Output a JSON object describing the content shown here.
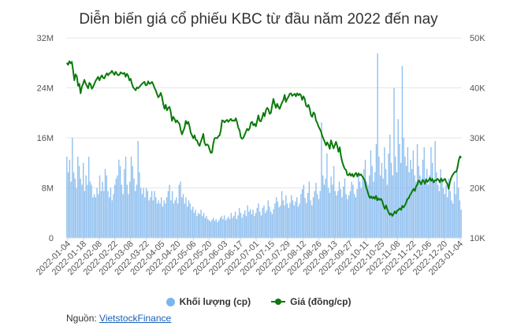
{
  "chart_data": {
    "type": "bar+line",
    "title": "Diễn biến giá cổ phiếu KBC từ đầu năm 2022 đến nay",
    "x_ticks": [
      "2022-01-04",
      "2022-01-18",
      "2022-02-08",
      "2022-02-22",
      "2022-03-08",
      "2022-03-22",
      "2022-04-05",
      "2022-04-20",
      "2022-05-06",
      "2022-05-20",
      "2022-06-03",
      "2022-06-17",
      "2022-07-01",
      "2022-07-15",
      "2022-07-29",
      "2022-08-12",
      "2022-08-26",
      "2022-09-13",
      "2022-09-27",
      "2022-10-11",
      "2022-10-25",
      "2022-11-08",
      "2022-11-22",
      "2022-12-06",
      "2022-12-20",
      "2023-01-04"
    ],
    "y_left": {
      "ticks": [
        "0",
        "8M",
        "16M",
        "24M",
        "32M"
      ],
      "min": 0,
      "max": 32000000
    },
    "y_right": {
      "ticks": [
        "10K",
        "20K",
        "30K",
        "40K",
        "50K"
      ],
      "min": 10000,
      "max": 50000
    },
    "series": [
      {
        "name": "Khối lượng (cp)",
        "type": "bar",
        "axis": "left",
        "color": "#7cb5ec",
        "values": [
          13000000,
          10500000,
          12500000,
          9000000,
          16000000,
          10500000,
          9500000,
          8000000,
          13000000,
          11500000,
          9500000,
          8500000,
          12000000,
          7500000,
          10000000,
          8500000,
          13000000,
          9000000,
          8500000,
          6500000,
          7000000,
          6500000,
          8000000,
          7000000,
          10000000,
          7500000,
          9000000,
          7500000,
          11000000,
          10000000,
          7500000,
          6500000,
          8000000,
          6000000,
          7000000,
          8500000,
          9500000,
          10000000,
          12500000,
          11500000,
          8500000,
          7000000,
          11000000,
          13000000,
          8500000,
          7000000,
          9000000,
          13000000,
          11500000,
          9500000,
          7500000,
          8500000,
          15500000,
          10500000,
          8000000,
          7000000,
          8000000,
          6500000,
          8000000,
          7500000,
          6000000,
          6500000,
          7500000,
          6000000,
          7500000,
          6500000,
          5500000,
          6000000,
          5500000,
          6500000,
          5000000,
          6000000,
          5500000,
          6500000,
          7500000,
          8500000,
          6000000,
          7500000,
          5500000,
          6000000,
          6500000,
          5500000,
          8500000,
          9000000,
          6500000,
          7000000,
          5500000,
          6500000,
          5000000,
          6000000,
          5500000,
          4500000,
          5000000,
          4000000,
          4500000,
          3500000,
          4000000,
          3800000,
          4500000,
          3500000,
          4000000,
          3200000,
          3500000,
          3000000,
          2800000,
          2600000,
          2900000,
          3200000,
          2700000,
          3000000,
          2500000,
          2800000,
          3200000,
          3500000,
          3000000,
          3600000,
          2800000,
          3100000,
          3400000,
          3000000,
          4000000,
          3200000,
          3500000,
          4200000,
          3000000,
          3600000,
          4800000,
          4000000,
          3200000,
          3800000,
          4400000,
          3500000,
          5200000,
          4200000,
          4600000,
          3800000,
          4500000,
          3500000,
          4000000,
          4800000,
          5500000,
          4200000,
          3600000,
          4800000,
          5200000,
          4000000,
          4400000,
          6000000,
          5000000,
          4200000,
          3800000,
          4600000,
          5500000,
          6500000,
          5800000,
          4900000,
          5200000,
          7500000,
          6000000,
          5200000,
          6800000,
          5500000,
          4800000,
          5600000,
          6800000,
          6000000,
          5200000,
          5800000,
          6500000,
          5000000,
          5500000,
          7000000,
          7800000,
          8500000,
          6400000,
          5600000,
          7200000,
          9000000,
          6000000,
          5200000,
          6500000,
          7500000,
          8800000,
          7000000,
          6200000,
          7500000,
          18500000,
          10000000,
          8500000,
          9500000,
          13500000,
          8000000,
          7200000,
          9800000,
          8500000,
          11500000,
          7500000,
          6800000,
          7500000,
          9000000,
          7800000,
          6500000,
          8200000,
          9500000,
          7000000,
          6200000,
          6800000,
          7500000,
          9000000,
          8500000,
          7000000,
          6500000,
          7800000,
          10500000,
          9000000,
          8000000,
          9500000,
          11000000,
          12500000,
          9000000,
          8500000,
          10000000,
          14000000,
          11500000,
          9000000,
          10500000,
          15000000,
          29500000,
          13000000,
          10000000,
          12000000,
          9500000,
          14500000,
          11000000,
          8500000,
          13500000,
          16500000,
          12000000,
          10000000,
          24000000,
          13000000,
          10500000,
          19000000,
          15000000,
          12000000,
          27500000,
          16000000,
          13000000,
          11500000,
          14500000,
          10500000,
          12500000,
          11000000,
          14000000,
          10000000,
          9000000,
          15000000,
          11500000,
          10000000,
          8500000,
          12500000,
          14500000,
          9500000,
          11000000,
          8500000,
          10000000,
          14500000,
          12000000,
          9000000,
          15500000,
          10500000,
          8500000,
          7500000,
          11000000,
          9000000,
          8000000,
          7000000,
          8500000,
          6500000,
          9500000,
          7500000,
          6000000,
          5500000,
          9000000,
          7000000,
          11500000,
          8000000,
          6000000,
          4500000
        ]
      },
      {
        "name": "Giá (đồng/cp)",
        "type": "line",
        "axis": "right",
        "color": "#0a7a0a",
        "values": [
          45000,
          44600,
          45300,
          44900,
          45200,
          43500,
          41500,
          42700,
          42300,
          40400,
          40800,
          38900,
          40200,
          40800,
          41600,
          40900,
          40400,
          39900,
          41000,
          40700,
          39800,
          40200,
          40800,
          41400,
          41800,
          42200,
          41500,
          42100,
          42500,
          42000,
          41900,
          42500,
          42900,
          42500,
          42900,
          43000,
          43400,
          43000,
          42600,
          43200,
          42800,
          42500,
          42600,
          43100,
          42900,
          42800,
          43000,
          42200,
          42800,
          42400,
          41500,
          41800,
          40800,
          40100,
          39800,
          39500,
          40100,
          39900,
          40200,
          40500,
          40800,
          41000,
          41200,
          40500,
          40600,
          41300,
          40800,
          40900,
          41200,
          40700,
          40000,
          39500,
          38800,
          38100,
          38400,
          39000,
          38200,
          36800,
          35800,
          36600,
          35500,
          36000,
          36200,
          35200,
          33400,
          34200,
          33800,
          33100,
          33500,
          33100,
          32800,
          31500,
          30700,
          31400,
          32000,
          33400,
          32800,
          33200,
          32300,
          31000,
          30500,
          29900,
          30500,
          29600,
          29500,
          28800,
          28400,
          29200,
          29900,
          30800,
          29000,
          28500,
          28700,
          28500,
          27700,
          27000,
          27100,
          28900,
          29900,
          30000,
          29900,
          30300,
          30500,
          31500,
          33500,
          33400,
          33100,
          33400,
          33600,
          33200,
          33500,
          33800,
          33400,
          33500,
          33400,
          33900,
          33100,
          32000,
          31500,
          30100,
          29800,
          30000,
          30600,
          31200,
          31800,
          31500,
          31900,
          33000,
          33200,
          32500,
          32800,
          32300,
          33400,
          34500,
          33400,
          33300,
          34000,
          35000,
          34300,
          35500,
          36000,
          35700,
          34800,
          35000,
          36500,
          37800,
          36800,
          36000,
          36800,
          36200,
          35800,
          36500,
          37100,
          37600,
          38600,
          37200,
          37800,
          38200,
          38800,
          38900,
          38400,
          38600,
          38800,
          38300,
          38900,
          38500,
          38800,
          38500,
          37600,
          38300,
          37800,
          36500,
          36200,
          36600,
          35800,
          34500,
          34200,
          35100,
          34800,
          33500,
          33000,
          32300,
          31800,
          31300,
          30400,
          29800,
          29200,
          28500,
          29100,
          28600,
          27800,
          29500,
          28700,
          27900,
          28500,
          29200,
          28400,
          27200,
          28100,
          26300,
          25200,
          24400,
          23800,
          23600,
          22600,
          22500,
          22900,
          22400,
          22800,
          22200,
          22700,
          23000,
          22300,
          22900,
          22500,
          22700,
          22300,
          21900,
          21500,
          20200,
          19500,
          18600,
          18000,
          18300,
          17900,
          18200,
          17800,
          18400,
          17500,
          17900,
          17600,
          17800,
          17300,
          16400,
          15800,
          16500,
          15700,
          15100,
          14600,
          14900,
          14400,
          14800,
          15300,
          14900,
          15500,
          15600,
          15900,
          15600,
          16400,
          16100,
          16500,
          17000,
          17800,
          17900,
          18500,
          18900,
          19400,
          19800,
          19400,
          20300,
          20700,
          21500,
          21200,
          20700,
          21600,
          21400,
          20800,
          21700,
          21200,
          21500,
          22000,
          21400,
          21800,
          21100,
          21500,
          21500,
          21800,
          21600,
          21100,
          21900,
          21300,
          21600,
          21800,
          21200,
          20800,
          19800,
          21200,
          22000,
          22500,
          22900,
          23200,
          23200,
          24000,
          25500,
          26300,
          26000
        ]
      }
    ],
    "legend": {
      "position": "bottom"
    },
    "grid": {
      "y": true,
      "x": false
    }
  },
  "source": {
    "label": "Nguồn: ",
    "link_text": "VietstockFinance"
  }
}
